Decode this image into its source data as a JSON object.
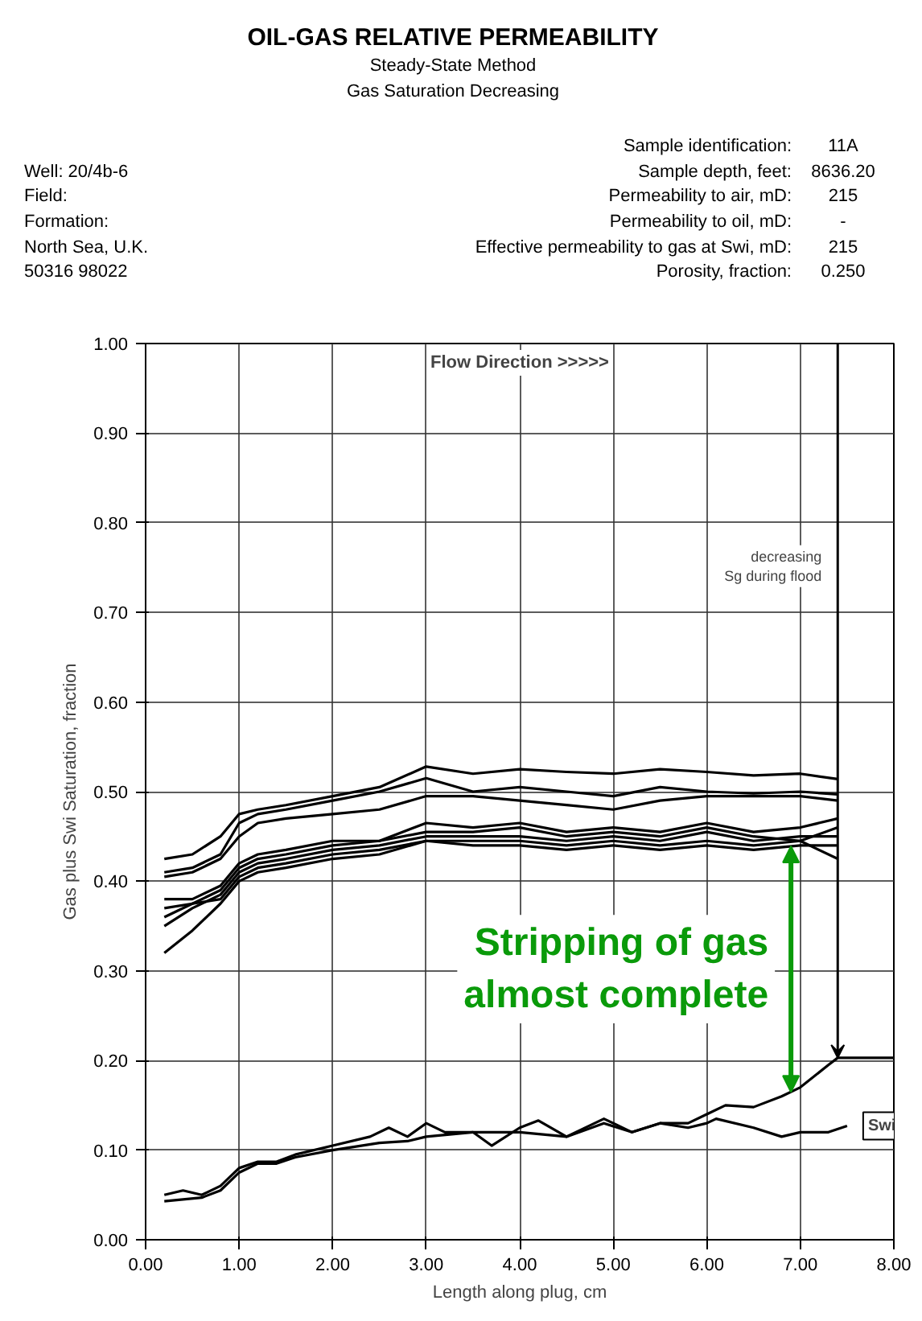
{
  "chart_data": {
    "type": "line",
    "title": "OIL-GAS RELATIVE PERMEABILITY",
    "subtitle": "Steady-State Method\nGas Saturation Decreasing",
    "xlabel": "Length along plug, cm",
    "ylabel": "Gas plus Swi Saturation, fraction",
    "xlim": [
      0,
      8
    ],
    "ylim": [
      0,
      1
    ],
    "xticks": [
      {
        "value": 0,
        "label": "0.00"
      },
      {
        "value": 1,
        "label": "1.00"
      },
      {
        "value": 2,
        "label": "2.00"
      },
      {
        "value": 3,
        "label": "3.00"
      },
      {
        "value": 4,
        "label": "4.00"
      },
      {
        "value": 5,
        "label": "5.00"
      },
      {
        "value": 6,
        "label": "6.00"
      },
      {
        "value": 7,
        "label": "7.00"
      },
      {
        "value": 8,
        "label": "8.00"
      }
    ],
    "yticks": [
      {
        "value": 0,
        "label": "0.00"
      },
      {
        "value": 0.1,
        "label": "0.10"
      },
      {
        "value": 0.2,
        "label": "0.20"
      },
      {
        "value": 0.3,
        "label": "0.30"
      },
      {
        "value": 0.4,
        "label": "0.40"
      },
      {
        "value": 0.5,
        "label": "0.50"
      },
      {
        "value": 0.6,
        "label": "0.60"
      },
      {
        "value": 0.7,
        "label": "0.70"
      },
      {
        "value": 0.8,
        "label": "0.80"
      },
      {
        "value": 0.9,
        "label": "0.90"
      },
      {
        "value": 1,
        "label": "1.00"
      }
    ],
    "grid": true,
    "line_style": "solid",
    "x": [
      0.2,
      0.5,
      0.8,
      1.0,
      1.2,
      1.5,
      2.0,
      2.5,
      3.0,
      3.5,
      4.0,
      4.5,
      5.0,
      5.5,
      6.0,
      6.5,
      7.0,
      7.4
    ],
    "series": [
      {
        "color": "#000000",
        "values": [
          0.425,
          0.43,
          0.45,
          0.475,
          0.48,
          0.485,
          0.495,
          0.505,
          0.528,
          0.52,
          0.525,
          0.522,
          0.52,
          0.525,
          0.522,
          0.518,
          0.52,
          0.514
        ]
      },
      {
        "color": "#000000",
        "values": [
          0.41,
          0.415,
          0.43,
          0.465,
          0.475,
          0.48,
          0.49,
          0.5,
          0.515,
          0.5,
          0.505,
          0.5,
          0.495,
          0.505,
          0.5,
          0.498,
          0.5,
          0.497
        ]
      },
      {
        "color": "#000000",
        "values": [
          0.405,
          0.41,
          0.425,
          0.45,
          0.465,
          0.47,
          0.475,
          0.48,
          0.495,
          0.495,
          0.49,
          0.485,
          0.48,
          0.49,
          0.495,
          0.495,
          0.495,
          0.49
        ]
      },
      {
        "color": "#000000",
        "values": [
          0.38,
          0.38,
          0.395,
          0.42,
          0.43,
          0.435,
          0.445,
          0.445,
          0.465,
          0.46,
          0.465,
          0.455,
          0.46,
          0.455,
          0.465,
          0.455,
          0.46,
          0.47
        ]
      },
      {
        "color": "#000000",
        "values": [
          0.36,
          0.375,
          0.39,
          0.415,
          0.425,
          0.43,
          0.44,
          0.445,
          0.455,
          0.455,
          0.46,
          0.45,
          0.455,
          0.45,
          0.46,
          0.45,
          0.445,
          0.46
        ]
      },
      {
        "color": "#000000",
        "values": [
          0.35,
          0.37,
          0.385,
          0.41,
          0.42,
          0.425,
          0.435,
          0.44,
          0.45,
          0.45,
          0.45,
          0.445,
          0.45,
          0.445,
          0.455,
          0.445,
          0.45,
          0.45
        ]
      },
      {
        "color": "#000000",
        "values": [
          0.37,
          0.375,
          0.38,
          0.405,
          0.415,
          0.42,
          0.43,
          0.435,
          0.445,
          0.445,
          0.445,
          0.44,
          0.445,
          0.44,
          0.445,
          0.44,
          0.445,
          0.425
        ]
      },
      {
        "color": "#000000",
        "values": [
          0.32,
          0.345,
          0.375,
          0.4,
          0.41,
          0.415,
          0.425,
          0.43,
          0.445,
          0.44,
          0.44,
          0.435,
          0.44,
          0.435,
          0.44,
          0.435,
          0.44,
          0.44
        ]
      },
      {
        "color": "#000000",
        "x": [
          0.2,
          0.4,
          0.6,
          0.8,
          1.0,
          1.2,
          1.4,
          1.6,
          2.0,
          2.4,
          2.6,
          2.8,
          3.0,
          3.2,
          3.5,
          3.7,
          4.0,
          4.2,
          4.5,
          4.9,
          5.2,
          5.5,
          5.8,
          6.0,
          6.2,
          6.5,
          6.8,
          7.0,
          7.3,
          7.4,
          8.0
        ],
        "values": [
          0.05,
          0.055,
          0.05,
          0.06,
          0.08,
          0.087,
          0.087,
          0.095,
          0.105,
          0.115,
          0.125,
          0.115,
          0.13,
          0.12,
          0.12,
          0.105,
          0.125,
          0.133,
          0.115,
          0.135,
          0.12,
          0.13,
          0.13,
          0.14,
          0.15,
          0.148,
          0.16,
          0.17,
          0.195,
          0.203,
          0.203
        ]
      },
      {
        "name": "Swi",
        "color": "#000000",
        "x": [
          0.2,
          0.6,
          0.8,
          1.0,
          1.2,
          1.4,
          1.6,
          2.0,
          2.5,
          2.8,
          3.0,
          3.5,
          4.0,
          4.5,
          4.9,
          5.2,
          5.5,
          5.8,
          6.0,
          6.1,
          6.5,
          6.8,
          7.0,
          7.3,
          7.5
        ],
        "values": [
          0.043,
          0.047,
          0.055,
          0.075,
          0.085,
          0.085,
          0.092,
          0.1,
          0.108,
          0.11,
          0.115,
          0.12,
          0.12,
          0.115,
          0.13,
          0.12,
          0.13,
          0.125,
          0.13,
          0.135,
          0.125,
          0.115,
          0.12,
          0.12,
          0.127
        ]
      }
    ],
    "annotations": [
      "Well: 20/4b-6",
      "Field:",
      "Formation:",
      "North Sea, U.K.",
      "50316 98022",
      "Sample identification:",
      "11A",
      "Sample depth, feet:",
      "8636.20",
      "Permeability to air, mD:",
      "215",
      "Permeability to oil, mD:",
      "-",
      "Effective permeability to gas at Swi, mD:",
      "215",
      "Porosity, fraction:",
      "0.250",
      "Flow Direction >>>>>",
      "decreasing\nSg during flood",
      {
        "text": "Stripping of gas\nalmost complete",
        "x": 6.9,
        "y": 0.165
      }
    ]
  }
}
